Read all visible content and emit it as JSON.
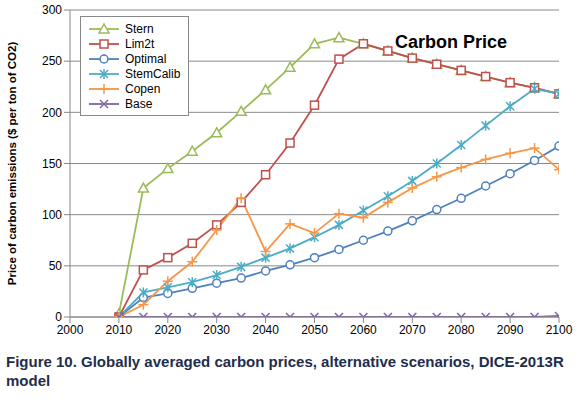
{
  "chart_data": {
    "type": "line",
    "title": "Carbon Price",
    "caption": "Figure 10. Globally averaged carbon prices, alternative scenarios, DICE-2013R model",
    "y_label": "Price of carbon emissions ($ per ton of CO2)",
    "x": [
      2010,
      2015,
      2020,
      2025,
      2030,
      2035,
      2040,
      2045,
      2050,
      2055,
      2060,
      2065,
      2070,
      2075,
      2080,
      2085,
      2090,
      2095,
      2100
    ],
    "series": [
      {
        "name": "Stern",
        "color": "#9BBB59",
        "marker": "triangle",
        "values": [
          3,
          126,
          145,
          162,
          180,
          201,
          222,
          244,
          267,
          273,
          267,
          260,
          253,
          247,
          241,
          235,
          229,
          224,
          218
        ]
      },
      {
        "name": "Lim2t",
        "color": "#C0504D",
        "marker": "square",
        "values": [
          0,
          46,
          58,
          72,
          90,
          112,
          139,
          170,
          207,
          252,
          267,
          260,
          253,
          247,
          241,
          235,
          229,
          224,
          218
        ]
      },
      {
        "name": "Optimal",
        "color": "#4F81BD",
        "marker": "circle",
        "values": [
          0,
          19,
          23,
          28,
          33,
          38,
          45,
          51,
          58,
          66,
          75,
          84,
          94,
          105,
          116,
          128,
          140,
          153,
          167
        ]
      },
      {
        "name": "StemCalib",
        "color": "#4BACC6",
        "marker": "star",
        "values": [
          0,
          24,
          29,
          34,
          41,
          49,
          58,
          67,
          78,
          90,
          104,
          118,
          133,
          150,
          168,
          187,
          206,
          223,
          218
        ]
      },
      {
        "name": "Copen",
        "color": "#F79646",
        "marker": "plus",
        "values": [
          0,
          12,
          35,
          54,
          85,
          116,
          64,
          91,
          82,
          101,
          97,
          112,
          126,
          137,
          146,
          154,
          160,
          165,
          144
        ]
      },
      {
        "name": "Base",
        "color": "#8064A2",
        "marker": "x",
        "values": [
          0,
          0,
          0,
          0,
          0,
          0,
          0,
          0,
          0,
          0,
          0,
          0,
          0,
          0,
          0,
          0,
          0,
          0,
          1
        ]
      }
    ],
    "xlim": [
      2000,
      2100
    ],
    "ylim": [
      0,
      300
    ],
    "xticks": [
      2000,
      2010,
      2020,
      2030,
      2040,
      2050,
      2060,
      2070,
      2080,
      2090,
      2100
    ],
    "yticks": [
      0,
      50,
      100,
      150,
      200,
      250,
      300
    ],
    "grid": true,
    "legend": "upper left"
  }
}
